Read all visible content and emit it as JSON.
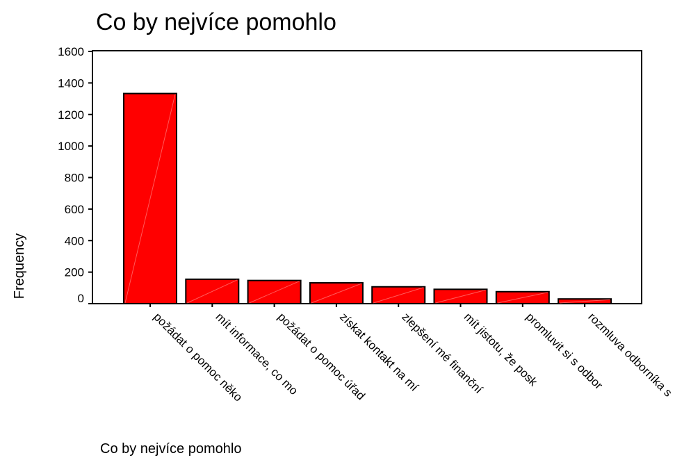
{
  "chart_data": {
    "type": "bar",
    "title": "Co by nejvíce pomohlo",
    "xlabel": "Co by nejvíce pomohlo",
    "ylabel": "Frequency",
    "categories": [
      "požádat o pomoc něko",
      "mít informace, co mo",
      "požádat o pomoc úřad",
      "získat kontakt na mí",
      "zlepšení mé finanční",
      "mít jistotu, že posk",
      "promluvit si s odbor",
      "rozmluva odborníka s"
    ],
    "values": [
      1333,
      155,
      147,
      132,
      107,
      91,
      76,
      30
    ],
    "ylim": [
      0,
      1600
    ],
    "yticks": [
      0,
      200,
      400,
      600,
      800,
      1000,
      1200,
      1400,
      1600
    ],
    "grid": false,
    "bar_color": "#ff0000",
    "legend": "none"
  }
}
